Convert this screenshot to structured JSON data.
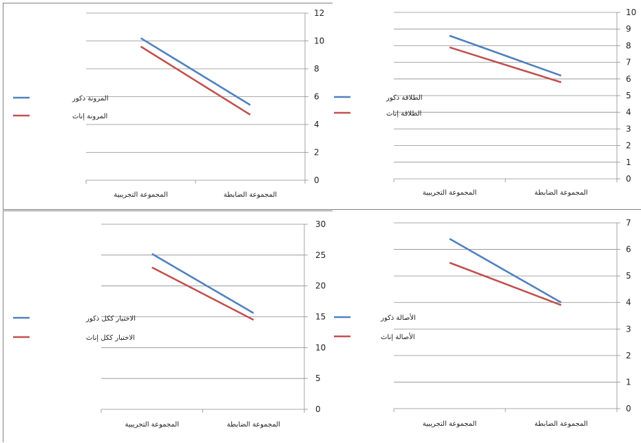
{
  "chart_data": [
    {
      "type": "line",
      "categories": [
        "المجموعة التجريبية",
        "المجموعة الضابطة"
      ],
      "series": [
        {
          "name": "المرونة ذكور",
          "values": [
            10.2,
            5.4
          ],
          "color": "#4f81bd"
        },
        {
          "name": "المرونة إناث",
          "values": [
            9.6,
            4.7
          ],
          "color": "#c0504d"
        }
      ],
      "ylim": [
        0,
        12
      ],
      "yticks": [
        0,
        2,
        4,
        6,
        8,
        10,
        12
      ],
      "grid": true,
      "legend": "left",
      "yaxis": "right"
    },
    {
      "type": "line",
      "categories": [
        "المجموعة التجريبية",
        "المجموعة الضابطة"
      ],
      "series": [
        {
          "name": "الطلاقة ذكور",
          "values": [
            8.6,
            6.2
          ],
          "color": "#4f81bd"
        },
        {
          "name": "الطلاقة إناث",
          "values": [
            7.9,
            5.8
          ],
          "color": "#c0504d"
        }
      ],
      "ylim": [
        0,
        10
      ],
      "yticks": [
        0,
        1,
        2,
        3,
        4,
        5,
        6,
        7,
        8,
        9,
        10
      ],
      "grid": true,
      "legend": "left",
      "yaxis": "right"
    },
    {
      "type": "line",
      "categories": [
        "المجموعة التجريبية",
        "المجموعة الضابطة"
      ],
      "series": [
        {
          "name": "الاختبار ككل ذكور",
          "values": [
            25.2,
            15.6
          ],
          "color": "#4f81bd"
        },
        {
          "name": "الاختبار ككل إناث",
          "values": [
            23.0,
            14.5
          ],
          "color": "#c0504d"
        }
      ],
      "ylim": [
        0,
        30
      ],
      "yticks": [
        0,
        5,
        10,
        15,
        20,
        25,
        30
      ],
      "grid": true,
      "legend": "left",
      "yaxis": "right"
    },
    {
      "type": "line",
      "categories": [
        "المجموعة التجريبية",
        "المجموعة الضابطة"
      ],
      "series": [
        {
          "name": "الأصالة ذكور",
          "values": [
            6.4,
            4.0
          ],
          "color": "#4f81bd"
        },
        {
          "name": "الأصالة إناث",
          "values": [
            5.5,
            3.9
          ],
          "color": "#c0504d"
        }
      ],
      "ylim": [
        0,
        7
      ],
      "yticks": [
        0,
        1,
        2,
        3,
        4,
        5,
        6,
        7
      ],
      "grid": true,
      "legend": "left",
      "yaxis": "right"
    }
  ]
}
